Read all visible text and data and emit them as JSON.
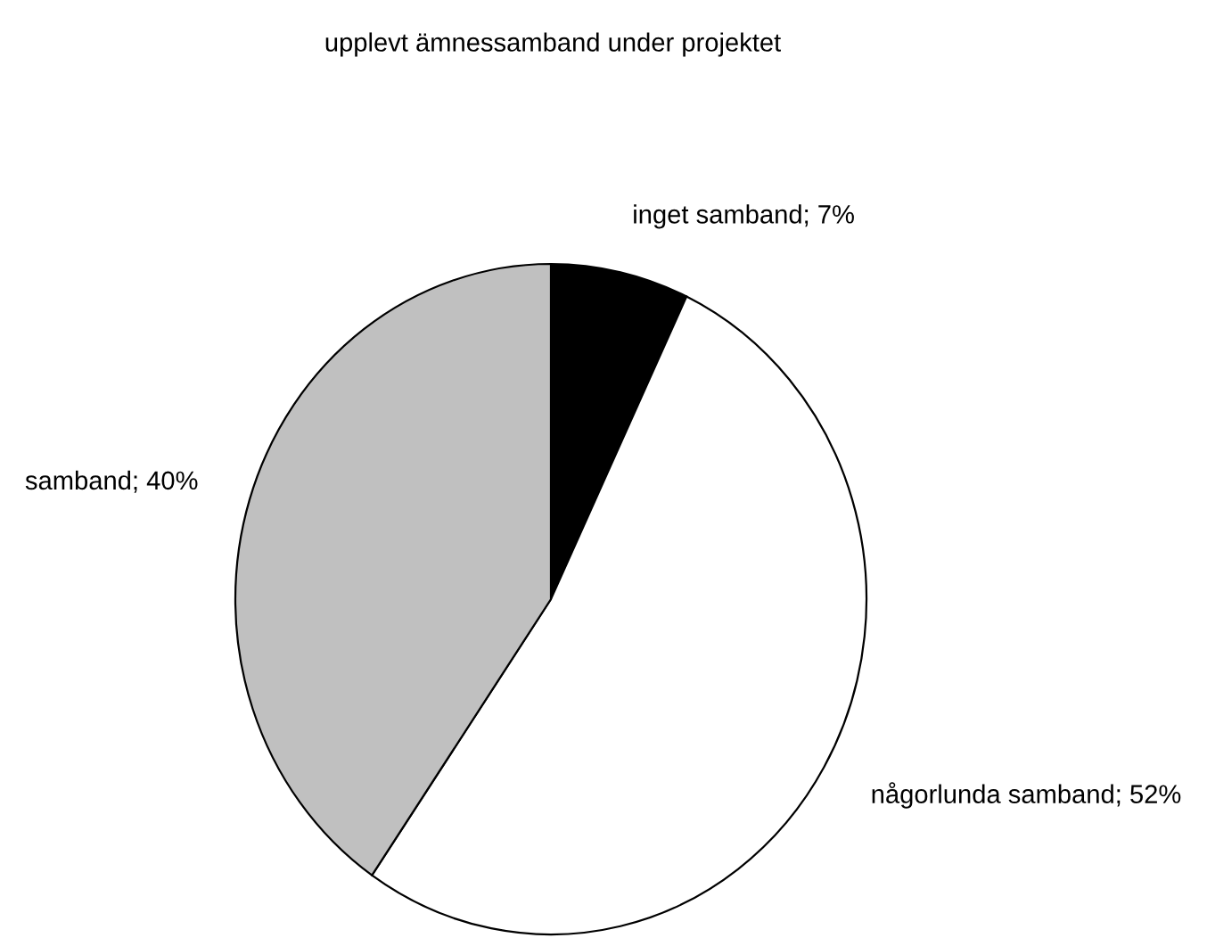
{
  "chart_data": {
    "type": "pie",
    "title": "upplevt ämnessamband under projektet",
    "categories": [
      "inget samband; 7%",
      "någorlunda samband; 52%",
      "samband; 40%"
    ],
    "values": [
      7,
      52,
      40
    ],
    "colors": [
      "#000000",
      "#ffffff",
      "#c0c0c0"
    ]
  }
}
